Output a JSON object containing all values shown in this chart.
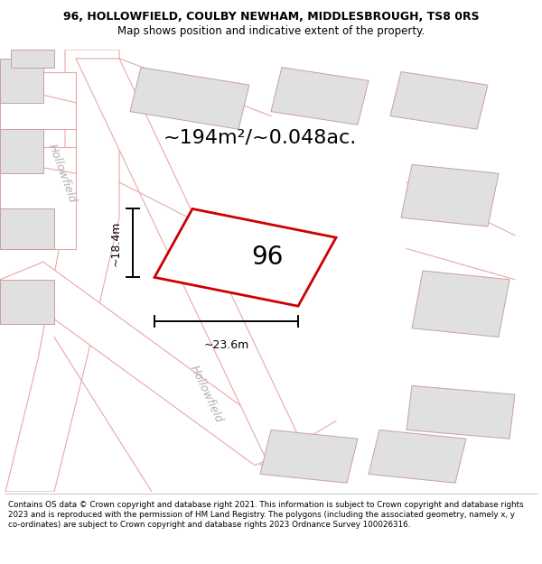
{
  "title_line1": "96, HOLLOWFIELD, COULBY NEWHAM, MIDDLESBROUGH, TS8 0RS",
  "title_line2": "Map shows position and indicative extent of the property.",
  "footer_text": "Contains OS data © Crown copyright and database right 2021. This information is subject to Crown copyright and database rights 2023 and is reproduced with the permission of HM Land Registry. The polygons (including the associated geometry, namely x, y co-ordinates) are subject to Crown copyright and database rights 2023 Ordnance Survey 100026316.",
  "map_bg": "#f2f2f2",
  "figure_bg": "#ffffff",
  "road_fill": "#ffffff",
  "road_edge": "#e8a8a8",
  "building_fill": "#e0e0e0",
  "building_edge": "#c8a0a0",
  "property_fill": "#ffffff",
  "property_edge": "#cc0000",
  "dim_color": "#000000",
  "area_text": "~194m²/~0.048ac.",
  "number_text": "96",
  "width_text": "~23.6m",
  "height_text": "~18.4m",
  "street_label1": "Hollowfield",
  "street_label2": "Hollowfield",
  "title_fontsize": 9.0,
  "subtitle_fontsize": 8.5,
  "footer_fontsize": 6.3,
  "area_fontsize": 16,
  "number_fontsize": 20,
  "dim_fontsize": 9,
  "street_fontsize": 9,
  "road_lw": 0.8,
  "building_lw": 0.7,
  "property_lw": 2.0,
  "dim_lw": 1.4
}
